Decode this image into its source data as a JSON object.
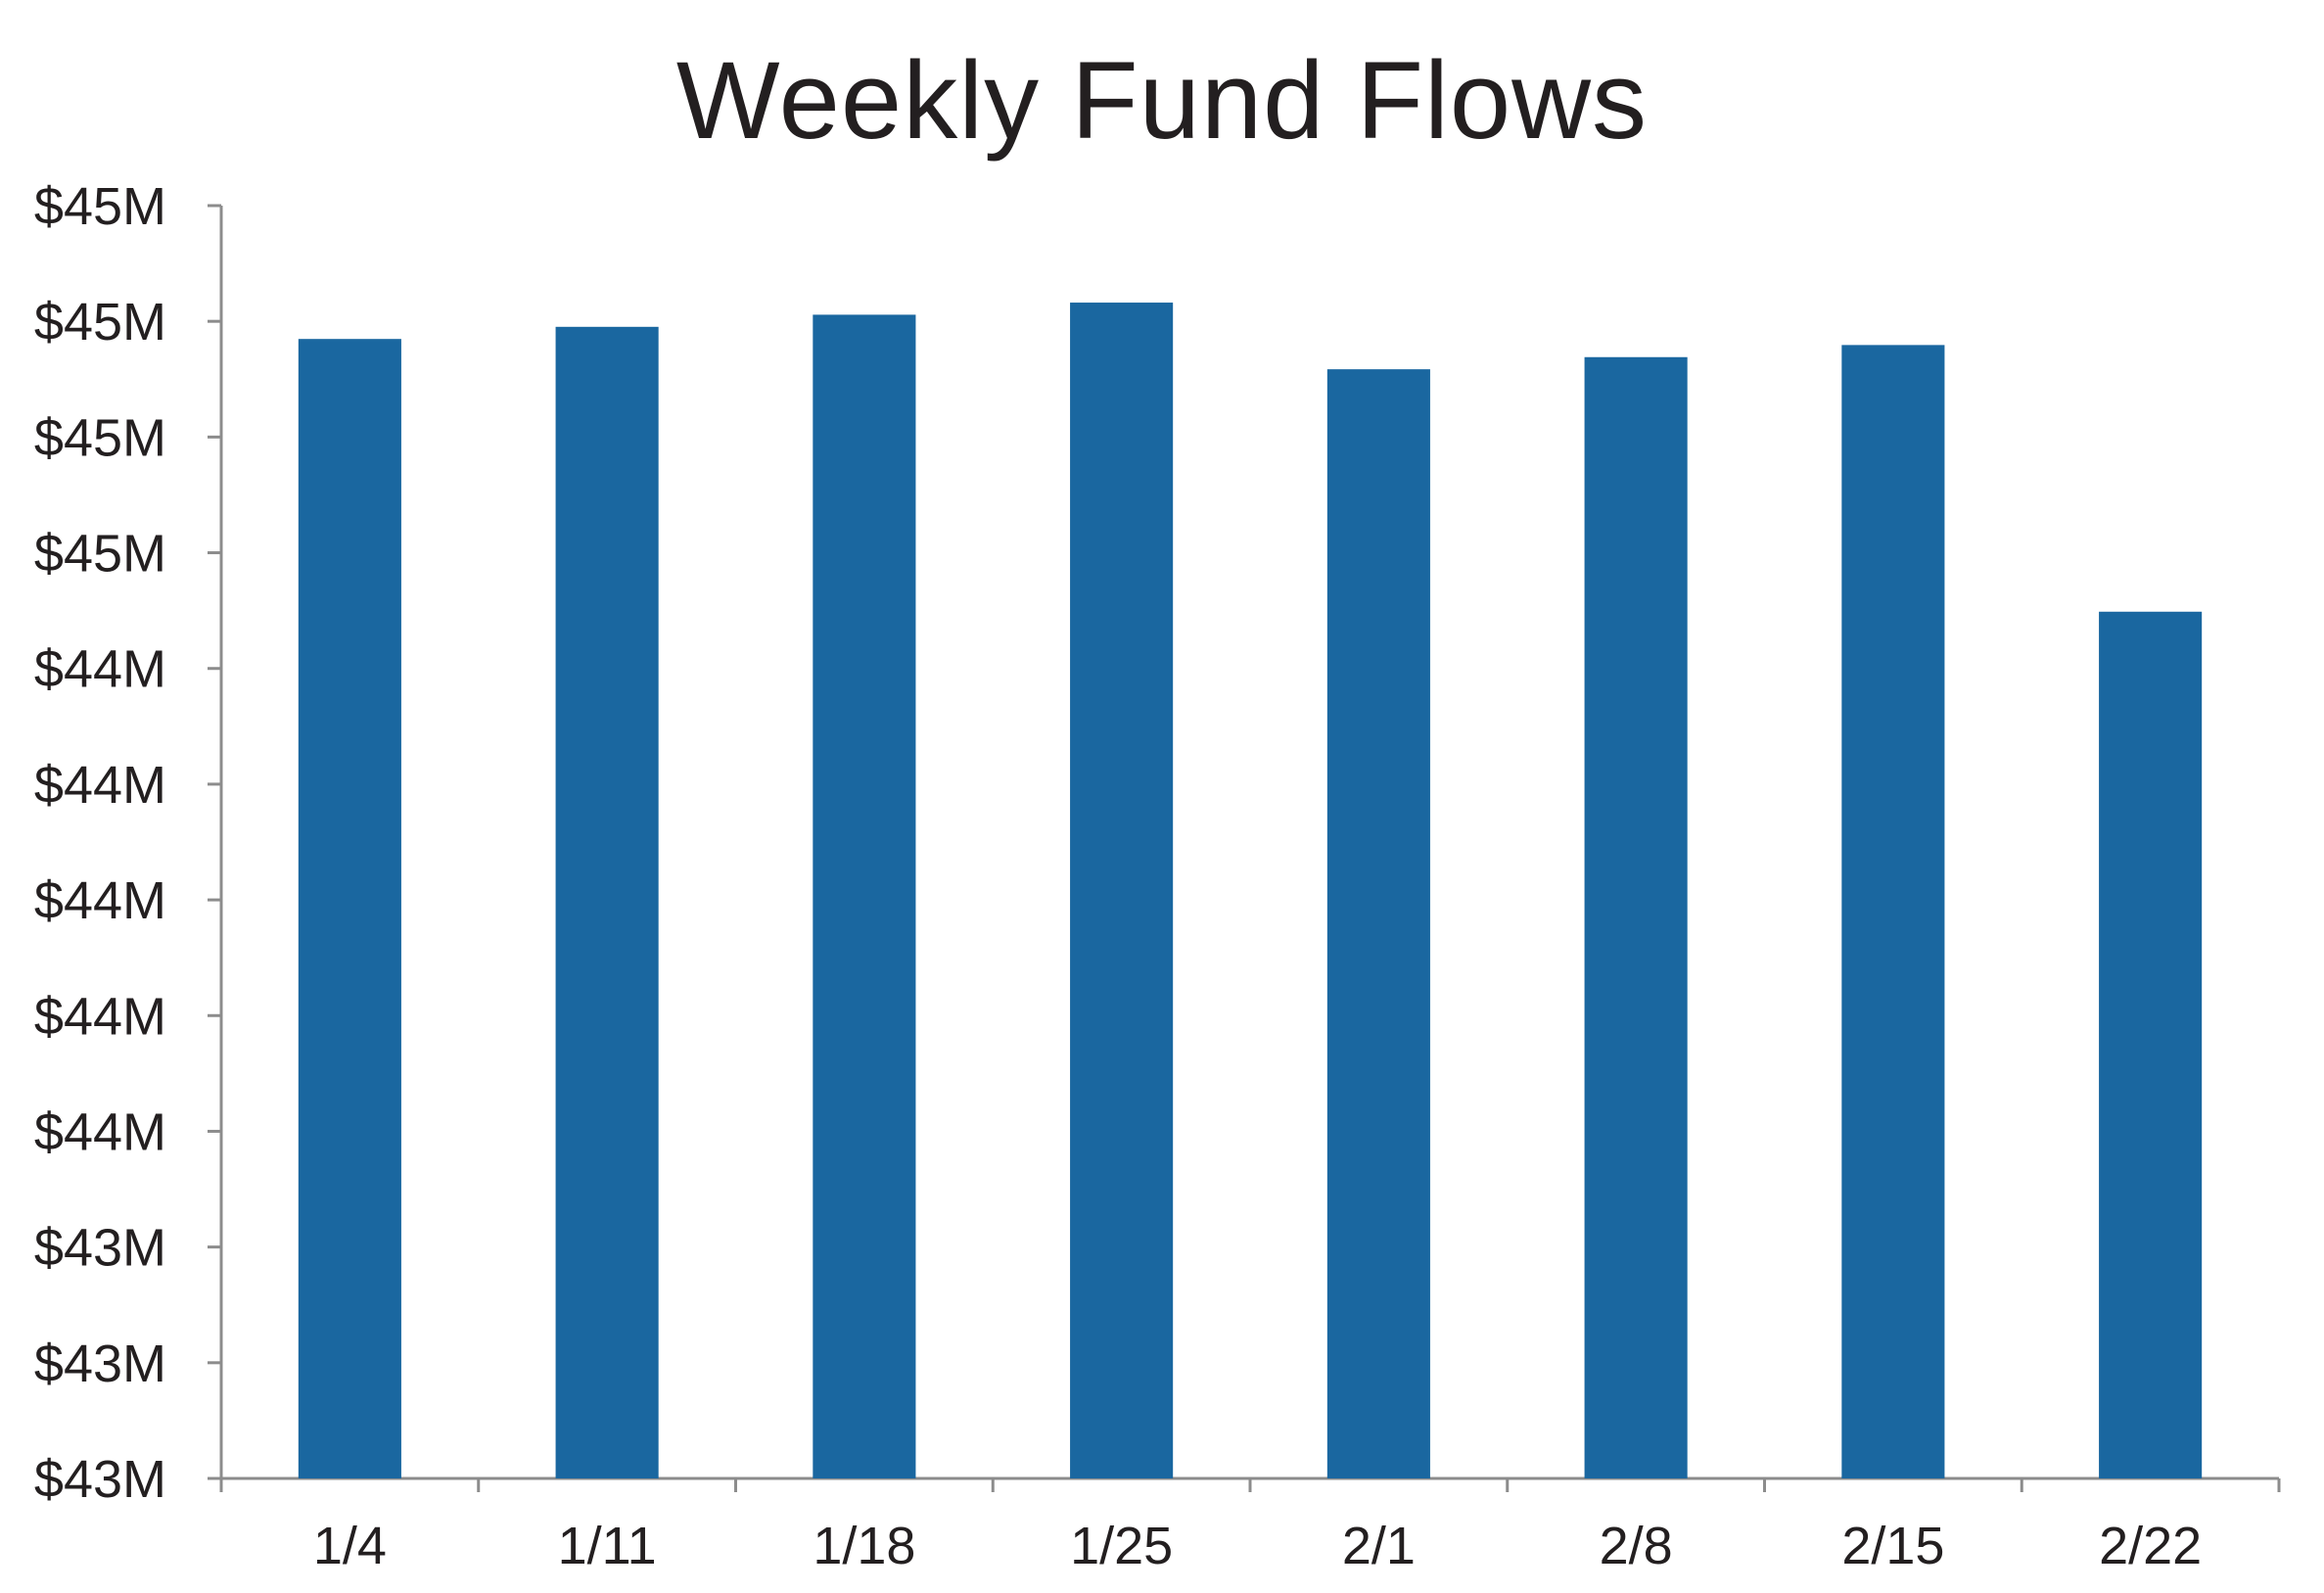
{
  "chart_data": {
    "type": "bar",
    "title": "Weekly Fund Flows",
    "xlabel": "",
    "ylabel": "",
    "categories": [
      "1/4",
      "1/11",
      "1/18",
      "1/25",
      "2/1",
      "2/8",
      "2/15",
      "2/22"
    ],
    "values": [
      44.88,
      44.9,
      44.92,
      44.94,
      44.83,
      44.85,
      44.87,
      44.43
    ],
    "ylim": [
      43.0,
      45.1
    ],
    "y_ticks": [
      45.1,
      44.9,
      44.7,
      44.5,
      44.3,
      44.1,
      43.9,
      43.7,
      43.5,
      43.3,
      43.1,
      43.0
    ],
    "y_tick_labels": [
      "$45M",
      "$45M",
      "$45M",
      "$45M",
      "$44M",
      "$44M",
      "$44M",
      "$44M",
      "$44M",
      "$43M",
      "$43M",
      "$43M"
    ],
    "bar_color": "#1a67a0",
    "axis_color": "#8c8c8c",
    "grid": false,
    "legend": "none"
  }
}
